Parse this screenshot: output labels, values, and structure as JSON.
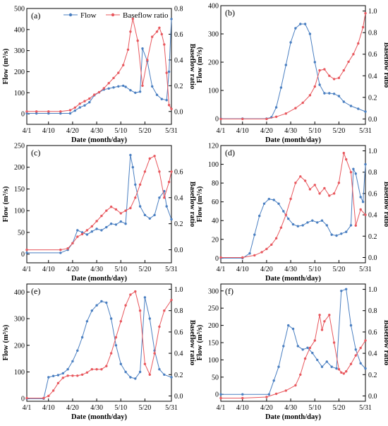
{
  "colors": {
    "flow": "#4a7fc1",
    "baseflow": "#e8585e"
  },
  "x_tick_labels": [
    "4/1",
    "4/10",
    "4/20",
    "4/30",
    "5/10",
    "5/20",
    "5/31"
  ],
  "legend": {
    "flow": "Flow",
    "baseflow": "Baseflow ratio"
  },
  "chart_data": [
    {
      "panel": "(a)",
      "type": "line",
      "legend": "top",
      "xlabel": "Date (month/day)",
      "ylabel_left": "Flow (m³/s)",
      "ylabel_right": "Baseflow ratio",
      "ylim_left": [
        -50,
        500
      ],
      "yticks_left": [
        0,
        100,
        200,
        300,
        400,
        500
      ],
      "ylim_right": [
        -0.1,
        0.8
      ],
      "yticks_right": [
        0.0,
        0.2,
        0.4,
        0.6,
        0.8
      ],
      "series": [
        {
          "name": "Flow",
          "axis": "left",
          "x": [
            1,
            5,
            10,
            15,
            19,
            21,
            23,
            25,
            27,
            29,
            31,
            33,
            35,
            37,
            39,
            41,
            42,
            44,
            46,
            48,
            49,
            51,
            53,
            55,
            57,
            59,
            60,
            61
          ],
          "values": [
            2,
            2,
            2,
            2,
            2,
            15,
            30,
            40,
            55,
            88,
            102,
            115,
            120,
            125,
            130,
            133,
            128,
            112,
            100,
            105,
            310,
            250,
            130,
            90,
            70,
            65,
            200,
            450
          ]
        },
        {
          "name": "Baseflow ratio",
          "axis": "right",
          "x": [
            1,
            5,
            10,
            15,
            19,
            21,
            23,
            25,
            27,
            29,
            31,
            33,
            35,
            37,
            39,
            41,
            43,
            44,
            45,
            47,
            49,
            51,
            53,
            55,
            56,
            57,
            58,
            59,
            60,
            61
          ],
          "values": [
            0.0,
            0.0,
            0.0,
            0.0,
            0.01,
            0.03,
            0.06,
            0.08,
            0.1,
            0.13,
            0.15,
            0.18,
            0.22,
            0.26,
            0.3,
            0.36,
            0.48,
            0.62,
            0.72,
            0.55,
            0.2,
            0.4,
            0.58,
            0.62,
            0.65,
            0.6,
            0.52,
            0.3,
            0.05,
            0.02
          ]
        }
      ]
    },
    {
      "panel": "(b)",
      "type": "line",
      "xlabel": "Date (month/day)",
      "ylabel_left": "Flow (m³/s)",
      "ylabel_right": "Baseflow ratio",
      "ylim_left": [
        -20,
        400
      ],
      "yticks_left": [
        0,
        100,
        200,
        300,
        400
      ],
      "ylim_right": [
        -0.05,
        1.05
      ],
      "yticks_right": [
        0.0,
        0.2,
        0.4,
        0.6,
        0.8,
        1.0
      ],
      "series": [
        {
          "name": "Flow",
          "axis": "left",
          "x": [
            1,
            10,
            20,
            22,
            24,
            26,
            28,
            30,
            32,
            34,
            36,
            38,
            40,
            42,
            44,
            46,
            48,
            50,
            52,
            55,
            58,
            61
          ],
          "values": [
            0,
            0,
            0,
            5,
            40,
            110,
            190,
            270,
            320,
            335,
            335,
            300,
            200,
            120,
            90,
            90,
            88,
            80,
            60,
            45,
            35,
            25
          ]
        },
        {
          "name": "Baseflow ratio",
          "axis": "right",
          "x": [
            1,
            10,
            20,
            24,
            28,
            32,
            35,
            38,
            40,
            42,
            44,
            46,
            48,
            50,
            52,
            54,
            56,
            58,
            60,
            61
          ],
          "values": [
            0.0,
            0.0,
            0.0,
            0.02,
            0.05,
            0.1,
            0.15,
            0.22,
            0.3,
            0.45,
            0.46,
            0.4,
            0.37,
            0.38,
            0.45,
            0.53,
            0.6,
            0.7,
            0.85,
            0.98
          ]
        }
      ]
    },
    {
      "panel": "(c)",
      "type": "line",
      "xlabel": "Date (month/day)",
      "ylabel_left": "Flow (m³/s)",
      "ylabel_right": "Baseflow ratio",
      "ylim_left": [
        -20,
        250
      ],
      "yticks_left": [
        0,
        50,
        100,
        150,
        200,
        250
      ],
      "ylim_right": [
        -0.1,
        0.8
      ],
      "yticks_right": [
        0.0,
        0.2,
        0.4,
        0.6
      ],
      "series": [
        {
          "name": "Flow",
          "axis": "left",
          "x": [
            1,
            15,
            18,
            20,
            22,
            24,
            26,
            28,
            30,
            32,
            34,
            36,
            38,
            40,
            42,
            44,
            45,
            46,
            48,
            50,
            52,
            54,
            56,
            58,
            59,
            61
          ],
          "values": [
            3,
            3,
            10,
            25,
            55,
            50,
            45,
            52,
            58,
            55,
            62,
            70,
            68,
            75,
            70,
            228,
            200,
            160,
            110,
            90,
            82,
            90,
            130,
            145,
            110,
            80
          ]
        },
        {
          "name": "Baseflow ratio",
          "axis": "right",
          "x": [
            1,
            15,
            18,
            20,
            22,
            24,
            26,
            28,
            30,
            32,
            34,
            36,
            38,
            40,
            42,
            44,
            46,
            48,
            50,
            52,
            54,
            56,
            58,
            60,
            61
          ],
          "values": [
            0.0,
            0.0,
            0.01,
            0.05,
            0.1,
            0.12,
            0.15,
            0.18,
            0.22,
            0.26,
            0.3,
            0.33,
            0.31,
            0.28,
            0.3,
            0.32,
            0.4,
            0.5,
            0.6,
            0.7,
            0.72,
            0.6,
            0.4,
            0.52,
            0.6
          ]
        }
      ]
    },
    {
      "panel": "(d)",
      "type": "line",
      "xlabel": "Date (month/day)",
      "ylabel_left": "Flow (m³/s)",
      "ylabel_right": "Baseflow ratio",
      "ylim_left": [
        -5,
        120
      ],
      "yticks_left": [
        0,
        20,
        40,
        60,
        80,
        100,
        120
      ],
      "ylim_right": [
        -0.05,
        1.05
      ],
      "yticks_right": [
        0.0,
        0.2,
        0.4,
        0.6,
        0.8,
        1.0
      ],
      "series": [
        {
          "name": "Flow",
          "axis": "left",
          "x": [
            1,
            10,
            13,
            15,
            17,
            19,
            21,
            23,
            25,
            27,
            29,
            31,
            33,
            35,
            37,
            39,
            41,
            43,
            45,
            47,
            49,
            51,
            53,
            55,
            56,
            57,
            59,
            60,
            61
          ],
          "values": [
            0,
            0,
            5,
            25,
            45,
            58,
            63,
            62,
            58,
            50,
            42,
            36,
            34,
            35,
            38,
            40,
            38,
            40,
            35,
            25,
            24,
            26,
            28,
            35,
            95,
            90,
            65,
            60,
            100
          ]
        },
        {
          "name": "Baseflow ratio",
          "axis": "right",
          "x": [
            1,
            10,
            15,
            18,
            20,
            22,
            24,
            26,
            28,
            30,
            32,
            34,
            36,
            38,
            40,
            42,
            44,
            46,
            48,
            50,
            52,
            53,
            55,
            57,
            59,
            61
          ],
          "values": [
            0.0,
            0.0,
            0.02,
            0.05,
            0.08,
            0.12,
            0.18,
            0.28,
            0.4,
            0.55,
            0.7,
            0.76,
            0.72,
            0.64,
            0.68,
            0.6,
            0.65,
            0.58,
            0.6,
            0.7,
            0.98,
            0.92,
            0.8,
            0.3,
            0.45,
            0.4
          ]
        }
      ]
    },
    {
      "panel": "(e)",
      "type": "line",
      "xlabel": "Date (month/day)",
      "ylabel_left": "Flow (m³/s)",
      "ylabel_right": "Baseflow ratio",
      "ylim_left": [
        -10,
        430
      ],
      "yticks_left": [
        0,
        100,
        200,
        300,
        400
      ],
      "ylim_right": [
        -0.05,
        1.05
      ],
      "yticks_right": [
        0.0,
        0.2,
        0.4,
        0.6,
        0.8,
        1.0
      ],
      "series": [
        {
          "name": "Flow",
          "axis": "left",
          "x": [
            1,
            8,
            10,
            12,
            14,
            16,
            18,
            20,
            22,
            24,
            26,
            28,
            30,
            32,
            34,
            36,
            38,
            40,
            42,
            44,
            46,
            48,
            50,
            52,
            54,
            56,
            58,
            61
          ],
          "values": [
            0,
            0,
            80,
            85,
            88,
            95,
            110,
            140,
            180,
            230,
            290,
            330,
            350,
            365,
            360,
            300,
            200,
            130,
            100,
            80,
            75,
            100,
            380,
            300,
            180,
            110,
            90,
            80
          ]
        },
        {
          "name": "Baseflow ratio",
          "axis": "right",
          "x": [
            1,
            8,
            10,
            12,
            14,
            16,
            18,
            20,
            22,
            24,
            26,
            28,
            30,
            32,
            34,
            36,
            38,
            40,
            42,
            44,
            46,
            48,
            50,
            52,
            54,
            56,
            58,
            61
          ],
          "values": [
            -0.02,
            -0.02,
            0.0,
            0.05,
            0.12,
            0.17,
            0.19,
            0.19,
            0.19,
            0.2,
            0.22,
            0.25,
            0.25,
            0.25,
            0.28,
            0.4,
            0.55,
            0.7,
            0.85,
            0.95,
            0.98,
            0.8,
            0.3,
            0.2,
            0.4,
            0.65,
            0.8,
            0.9
          ]
        }
      ]
    },
    {
      "panel": "(f)",
      "type": "line",
      "xlabel": "Date (month/day)",
      "ylabel_left": "Flow (m³/s)",
      "ylabel_right": "Baseflow ratio",
      "ylim_left": [
        -20,
        320
      ],
      "yticks_left": [
        0,
        50,
        100,
        150,
        200,
        250,
        300
      ],
      "ylim_right": [
        -0.05,
        1.05
      ],
      "yticks_right": [
        0.0,
        0.2,
        0.4,
        0.6,
        0.8,
        1.0
      ],
      "series": [
        {
          "name": "Flow",
          "axis": "left",
          "x": [
            1,
            10,
            21,
            23,
            25,
            27,
            29,
            31,
            33,
            35,
            37,
            39,
            41,
            43,
            45,
            47,
            49,
            51,
            53,
            55,
            57,
            59,
            61
          ],
          "values": [
            0,
            0,
            0,
            40,
            80,
            140,
            200,
            190,
            140,
            130,
            135,
            120,
            100,
            80,
            95,
            80,
            75,
            300,
            305,
            200,
            130,
            90,
            75
          ]
        },
        {
          "name": "Baseflow ratio",
          "axis": "right",
          "x": [
            1,
            10,
            20,
            24,
            28,
            32,
            34,
            36,
            38,
            40,
            42,
            43,
            44,
            46,
            48,
            50,
            51,
            52,
            53,
            55,
            57,
            59,
            61
          ],
          "values": [
            -0.02,
            -0.02,
            -0.01,
            0.02,
            0.05,
            0.1,
            0.2,
            0.35,
            0.45,
            0.52,
            0.76,
            0.62,
            0.7,
            0.76,
            0.5,
            0.25,
            0.22,
            0.21,
            0.23,
            0.3,
            0.38,
            0.45,
            0.52
          ]
        }
      ]
    }
  ]
}
